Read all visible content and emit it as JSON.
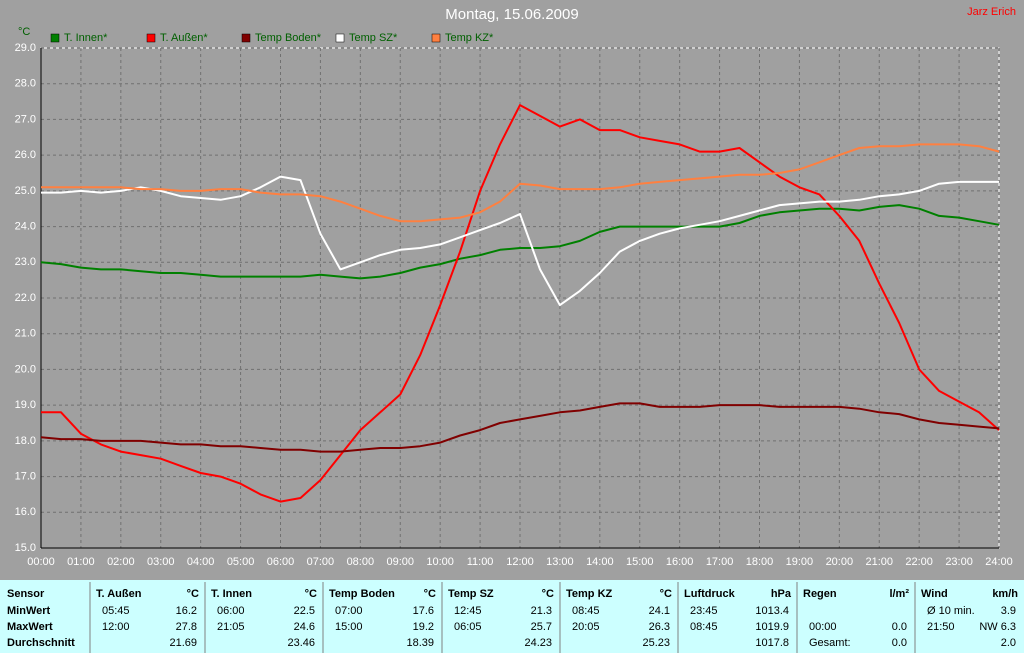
{
  "chart_data": {
    "type": "line",
    "title": "Montag, 15.06.2009",
    "author": "Jarz Erich",
    "y_label": "°C",
    "x": [
      0,
      0.5,
      1,
      1.5,
      2,
      2.5,
      3,
      3.5,
      4,
      4.5,
      5,
      5.5,
      6,
      6.5,
      7,
      7.5,
      8,
      8.5,
      9,
      9.5,
      10,
      10.5,
      11,
      11.5,
      12,
      12.5,
      13,
      13.5,
      14,
      14.5,
      15,
      15.5,
      16,
      16.5,
      17,
      17.5,
      18,
      18.5,
      19,
      19.5,
      20,
      20.5,
      21,
      21.5,
      22,
      22.5,
      23,
      23.5,
      24
    ],
    "xlim": [
      0,
      24
    ],
    "xticks": [
      {
        "value": 0,
        "label": "00:00"
      },
      {
        "value": 1,
        "label": "01:00"
      },
      {
        "value": 2,
        "label": "02:00"
      },
      {
        "value": 3,
        "label": "03:00"
      },
      {
        "value": 4,
        "label": "04:00"
      },
      {
        "value": 5,
        "label": "05:00"
      },
      {
        "value": 6,
        "label": "06:00"
      },
      {
        "value": 7,
        "label": "07:00"
      },
      {
        "value": 8,
        "label": "08:00"
      },
      {
        "value": 9,
        "label": "09:00"
      },
      {
        "value": 10,
        "label": "10:00"
      },
      {
        "value": 11,
        "label": "11:00"
      },
      {
        "value": 12,
        "label": "12:00"
      },
      {
        "value": 13,
        "label": "13:00"
      },
      {
        "value": 14,
        "label": "14:00"
      },
      {
        "value": 15,
        "label": "15:00"
      },
      {
        "value": 16,
        "label": "16:00"
      },
      {
        "value": 17,
        "label": "17:00"
      },
      {
        "value": 18,
        "label": "18:00"
      },
      {
        "value": 19,
        "label": "19:00"
      },
      {
        "value": 20,
        "label": "20:00"
      },
      {
        "value": 21,
        "label": "21:00"
      },
      {
        "value": 22,
        "label": "22:00"
      },
      {
        "value": 23,
        "label": "23:00"
      },
      {
        "value": 24,
        "label": "24:00"
      }
    ],
    "ylim": [
      15,
      29
    ],
    "yticks": [
      {
        "value": 15,
        "label": "15.0"
      },
      {
        "value": 16,
        "label": "16.0"
      },
      {
        "value": 17,
        "label": "17.0"
      },
      {
        "value": 18,
        "label": "18.0"
      },
      {
        "value": 19,
        "label": "19.0"
      },
      {
        "value": 20,
        "label": "20.0"
      },
      {
        "value": 21,
        "label": "21.0"
      },
      {
        "value": 22,
        "label": "22.0"
      },
      {
        "value": 23,
        "label": "23.0"
      },
      {
        "value": 24,
        "label": "24.0"
      },
      {
        "value": 25,
        "label": "25.0"
      },
      {
        "value": 26,
        "label": "26.0"
      },
      {
        "value": 27,
        "label": "27.0"
      },
      {
        "value": 28,
        "label": "28.0"
      },
      {
        "value": 29,
        "label": "29.0"
      }
    ],
    "grid": true,
    "series": [
      {
        "name": "T. Innen*",
        "color": "#008000",
        "values": [
          23.0,
          22.95,
          22.85,
          22.8,
          22.8,
          22.75,
          22.7,
          22.7,
          22.65,
          22.6,
          22.6,
          22.6,
          22.6,
          22.6,
          22.65,
          22.6,
          22.55,
          22.6,
          22.7,
          22.85,
          22.95,
          23.1,
          23.2,
          23.35,
          23.4,
          23.4,
          23.45,
          23.6,
          23.85,
          24.0,
          24.0,
          24.0,
          24.0,
          24.0,
          24.0,
          24.1,
          24.3,
          24.4,
          24.45,
          24.5,
          24.5,
          24.45,
          24.55,
          24.6,
          24.5,
          24.3,
          24.25,
          24.15,
          24.05
        ]
      },
      {
        "name": "T. Außen*",
        "color": "#ff0000",
        "values": [
          18.8,
          18.8,
          18.2,
          17.9,
          17.7,
          17.6,
          17.5,
          17.3,
          17.1,
          17.0,
          16.8,
          16.5,
          16.3,
          16.4,
          16.9,
          17.6,
          18.3,
          18.8,
          19.3,
          20.4,
          21.8,
          23.3,
          25.0,
          26.3,
          27.4,
          27.1,
          26.8,
          27.0,
          26.7,
          26.7,
          26.5,
          26.4,
          26.3,
          26.1,
          26.1,
          26.2,
          25.8,
          25.4,
          25.1,
          24.9,
          24.3,
          23.6,
          22.4,
          21.3,
          20.0,
          19.4,
          19.1,
          18.8,
          18.3
        ]
      },
      {
        "name": "Temp Boden*",
        "color": "#800000",
        "values": [
          18.1,
          18.05,
          18.05,
          18.0,
          18.0,
          18.0,
          17.95,
          17.9,
          17.9,
          17.85,
          17.85,
          17.8,
          17.75,
          17.75,
          17.7,
          17.7,
          17.75,
          17.8,
          17.8,
          17.85,
          17.95,
          18.15,
          18.3,
          18.5,
          18.6,
          18.7,
          18.8,
          18.85,
          18.95,
          19.05,
          19.05,
          18.95,
          18.95,
          18.95,
          19.0,
          19.0,
          19.0,
          18.95,
          18.95,
          18.95,
          18.95,
          18.9,
          18.8,
          18.75,
          18.6,
          18.5,
          18.45,
          18.4,
          18.35
        ]
      },
      {
        "name": "Temp SZ*",
        "color": "#ffffff",
        "values": [
          24.95,
          24.95,
          25.0,
          24.95,
          25.0,
          25.1,
          25.0,
          24.85,
          24.8,
          24.75,
          24.85,
          25.1,
          25.4,
          25.3,
          23.8,
          22.8,
          23.0,
          23.2,
          23.35,
          23.4,
          23.5,
          23.7,
          23.9,
          24.1,
          24.35,
          22.8,
          21.8,
          22.2,
          22.7,
          23.3,
          23.6,
          23.8,
          23.95,
          24.05,
          24.15,
          24.3,
          24.45,
          24.6,
          24.65,
          24.7,
          24.7,
          24.75,
          24.85,
          24.9,
          25.0,
          25.2,
          25.25,
          25.25,
          25.25
        ]
      },
      {
        "name": "Temp KZ*",
        "color": "#ff8040",
        "values": [
          25.1,
          25.1,
          25.1,
          25.1,
          25.1,
          25.05,
          25.05,
          25.0,
          25.0,
          25.05,
          25.05,
          24.95,
          24.9,
          24.9,
          24.85,
          24.7,
          24.5,
          24.3,
          24.15,
          24.15,
          24.2,
          24.25,
          24.4,
          24.7,
          25.2,
          25.15,
          25.05,
          25.05,
          25.05,
          25.1,
          25.2,
          25.25,
          25.3,
          25.35,
          25.4,
          25.45,
          25.45,
          25.5,
          25.6,
          25.8,
          26.0,
          26.2,
          26.25,
          26.25,
          26.3,
          26.3,
          26.3,
          26.25,
          26.1
        ]
      }
    ]
  },
  "table": {
    "row_labels": [
      "Sensor",
      "MinWert",
      "MaxWert",
      "Durchschnitt"
    ],
    "columns": [
      {
        "title": "T. Außen",
        "unit": "°C",
        "rows": [
          [
            "05:45",
            "16.2"
          ],
          [
            "12:00",
            "27.8"
          ],
          [
            null,
            "21.69"
          ]
        ]
      },
      {
        "title": "T. Innen",
        "unit": "°C",
        "rows": [
          [
            "06:00",
            "22.5"
          ],
          [
            "21:05",
            "24.6"
          ],
          [
            null,
            "23.46"
          ]
        ]
      },
      {
        "title": "Temp Boden",
        "unit": "°C",
        "rows": [
          [
            "07:00",
            "17.6"
          ],
          [
            "15:00",
            "19.2"
          ],
          [
            null,
            "18.39"
          ]
        ]
      },
      {
        "title": "Temp SZ",
        "unit": "°C",
        "rows": [
          [
            "12:45",
            "21.3"
          ],
          [
            "06:05",
            "25.7"
          ],
          [
            null,
            "24.23"
          ]
        ]
      },
      {
        "title": "Temp KZ",
        "unit": "°C",
        "rows": [
          [
            "08:45",
            "24.1"
          ],
          [
            "20:05",
            "26.3"
          ],
          [
            null,
            "25.23"
          ]
        ]
      },
      {
        "title": "Luftdruck",
        "unit": "hPa",
        "rows": [
          [
            "23:45",
            "1013.4"
          ],
          [
            "08:45",
            "1019.9"
          ],
          [
            null,
            "1017.8"
          ]
        ]
      },
      {
        "title": "Regen",
        "unit": "l/m²",
        "rows": [
          [
            null,
            null
          ],
          [
            "00:00",
            "0.0"
          ],
          [
            "Gesamt:",
            "0.0"
          ]
        ]
      },
      {
        "title": "Wind",
        "unit": "km/h",
        "rows": [
          [
            "Ø 10 min.",
            "3.9"
          ],
          [
            "21:50",
            "NW 6.3"
          ],
          [
            null,
            "2.0"
          ]
        ]
      }
    ]
  }
}
